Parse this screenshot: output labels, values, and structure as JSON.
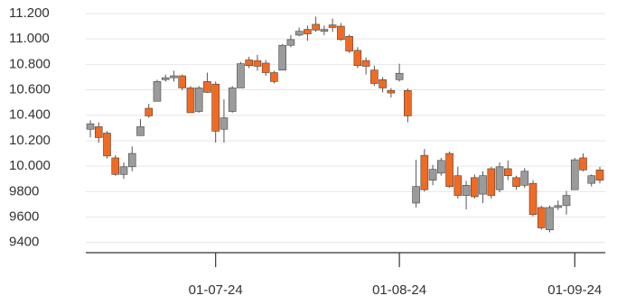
{
  "chart_data": {
    "type": "candlestick",
    "categories": [
      null,
      null,
      null,
      null,
      null,
      null,
      null,
      null,
      null,
      null,
      null,
      null,
      null,
      null,
      null,
      "01-07-24",
      null,
      null,
      null,
      null,
      null,
      null,
      null,
      null,
      null,
      null,
      null,
      null,
      null,
      null,
      null,
      null,
      null,
      null,
      null,
      null,
      null,
      "01-08-24",
      null,
      null,
      null,
      null,
      null,
      null,
      null,
      null,
      null,
      null,
      null,
      null,
      null,
      null,
      null,
      null,
      null,
      null,
      null,
      null,
      "01-09-24",
      null,
      null,
      null
    ],
    "open": [
      10290,
      10310,
      10260,
      10065,
      9935,
      9995,
      10240,
      10455,
      10510,
      10680,
      10695,
      10710,
      10615,
      10430,
      10665,
      10645,
      10290,
      10430,
      10615,
      10835,
      10830,
      10810,
      10735,
      10755,
      10950,
      11030,
      11075,
      11115,
      11060,
      11110,
      11100,
      11020,
      10910,
      10830,
      10755,
      10680,
      10595,
      10680,
      10595,
      9710,
      10085,
      9890,
      9945,
      10100,
      9925,
      9770,
      9910,
      9780,
      9980,
      9815,
      9980,
      9910,
      9850,
      9865,
      9675,
      9500,
      9675,
      9690,
      9815,
      10065,
      9865,
      9970
    ],
    "high": [
      10360,
      10345,
      10275,
      10085,
      10030,
      10155,
      10370,
      10490,
      10680,
      10720,
      10750,
      10720,
      10630,
      10630,
      10735,
      10665,
      10525,
      10630,
      10820,
      10860,
      10875,
      10835,
      10750,
      10960,
      11030,
      11090,
      11105,
      11175,
      11105,
      11160,
      11125,
      11035,
      10935,
      10855,
      10790,
      10700,
      10615,
      10805,
      10610,
      10050,
      10135,
      10010,
      10065,
      10115,
      9995,
      9885,
      9935,
      9960,
      9995,
      10030,
      10045,
      9925,
      9985,
      9890,
      9690,
      9690,
      9730,
      9805,
      10065,
      10100,
      9935,
      9995
    ],
    "low": [
      10225,
      10185,
      10060,
      9925,
      9900,
      9960,
      10240,
      10380,
      10510,
      10665,
      10665,
      10595,
      10420,
      10420,
      10575,
      10185,
      10185,
      10420,
      10615,
      10770,
      10750,
      10710,
      10650,
      10755,
      10935,
      11020,
      10985,
      11055,
      11030,
      11055,
      10985,
      10890,
      10770,
      10720,
      10630,
      10580,
      10540,
      10665,
      10345,
      9675,
      9800,
      9850,
      9925,
      9830,
      9745,
      9660,
      9745,
      9710,
      9745,
      9795,
      9890,
      9815,
      9830,
      9605,
      9500,
      9480,
      9655,
      9620,
      9815,
      9960,
      9840,
      9865
    ],
    "close": [
      10333,
      10225,
      10080,
      9935,
      9995,
      10100,
      10310,
      10395,
      10665,
      10695,
      10710,
      10615,
      10420,
      10615,
      10580,
      10275,
      10380,
      10615,
      10805,
      10790,
      10785,
      10735,
      10665,
      10950,
      10995,
      11060,
      11040,
      11070,
      11075,
      11090,
      10995,
      10905,
      10790,
      10785,
      10650,
      10615,
      10575,
      10730,
      10395,
      9840,
      9815,
      9975,
      10045,
      9840,
      9770,
      9850,
      9760,
      9925,
      9770,
      9995,
      9925,
      9840,
      9960,
      9620,
      9515,
      9675,
      9690,
      9770,
      10050,
      9970,
      9925,
      9890
    ],
    "up_color": "#9b9b9b",
    "down_color": "#f26a21",
    "ylim": [
      9320,
      11260
    ],
    "yticks": [
      9400,
      9600,
      9800,
      {
        "value": 10000,
        "label": "10.000"
      },
      {
        "value": 10200,
        "label": "10.200"
      },
      {
        "value": 10400,
        "label": "10.400"
      },
      {
        "value": 10600,
        "label": "10.600"
      },
      {
        "value": 10800,
        "label": "10.800"
      },
      {
        "value": 11000,
        "label": "11.000"
      },
      {
        "value": 11200,
        "label": "11.200"
      }
    ],
    "grid": true
  }
}
